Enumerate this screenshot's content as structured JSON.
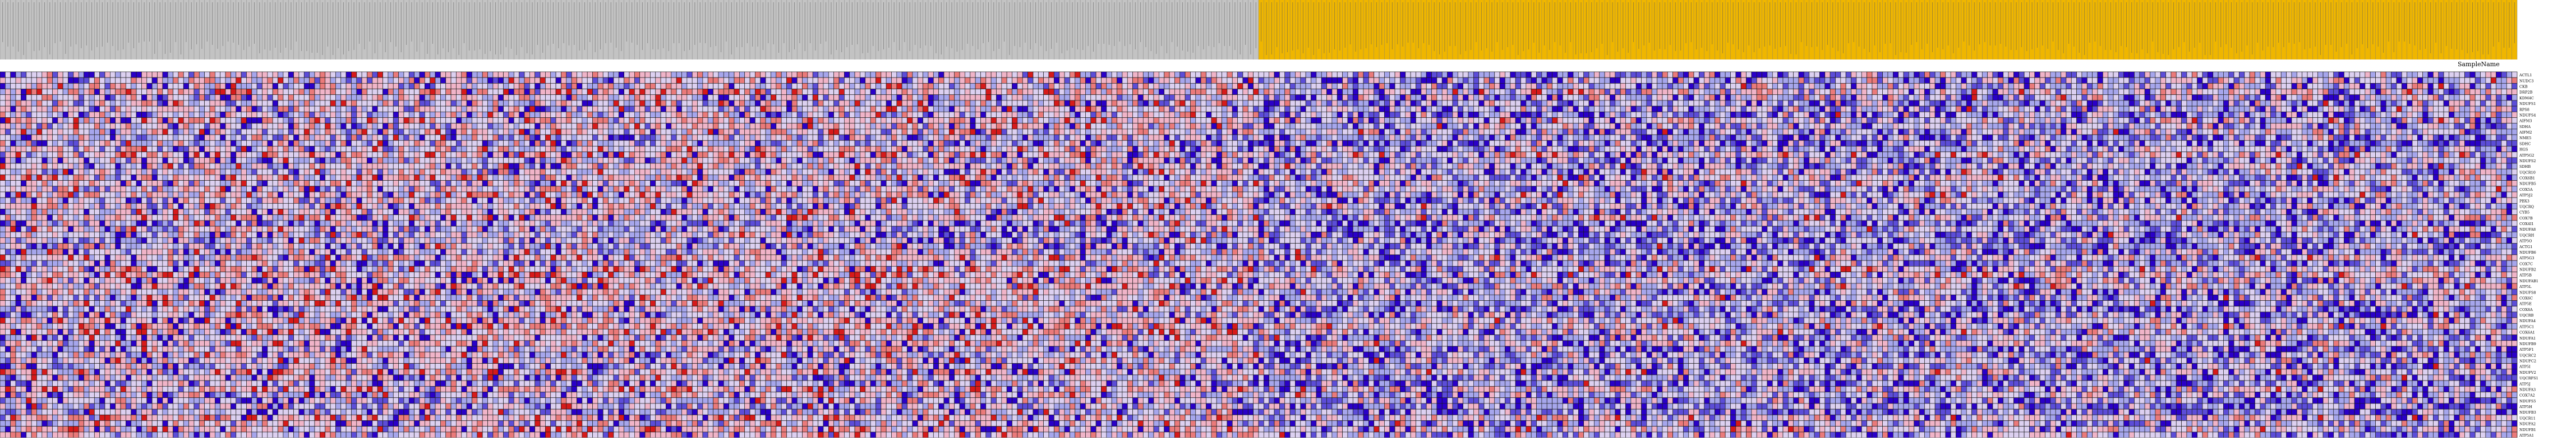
{
  "chart_data": {
    "type": "heatmap",
    "title": "",
    "xlabel": "",
    "ylabel": "",
    "legend": "none",
    "column_class_header": "SampleName",
    "class_colors": {
      "class_1": "#c3c3c3",
      "class_2": "#efb600"
    },
    "value_colors": {
      "strong_low": "#2a00c8",
      "low": "#5c4dd8",
      "mid_low": "#a6a6ec",
      "neutral": "#dcd0f0",
      "mid_high": "#f0b4c8",
      "high": "#ea7a7a",
      "strong_high": "#d61a1a"
    },
    "value_range": [
      -3,
      3
    ],
    "row_labels": [
      "ACTL1",
      "NUDC3",
      "CKB",
      "DRP2B",
      "KDM4C",
      "NDUFS1",
      "RPS8",
      "NDUFS4",
      "AIFM3",
      "SDHA",
      "AIFM2",
      "NME5",
      "SDHC",
      "HGS",
      "ATP5G2",
      "NDUFS2",
      "SDHB",
      "UQCR10",
      "COX6B1",
      "NDUFB5",
      "COX5A",
      "ATP5J2",
      "PBX3",
      "UQCRQ",
      "CYB5",
      "COX7B",
      "COX4I1",
      "NDUFA8",
      "UQCRH",
      "ATP5O",
      "ACTG1",
      "NDUFB6",
      "ATP5G3",
      "COX7C",
      "NDUFB2",
      "ATP5B",
      "NDUFAB1",
      "ATP5L",
      "NDUFS8",
      "COX6C",
      "ATP5E",
      "COX8A",
      "UQCRB",
      "NDUFA4",
      "ATP5C1",
      "COX6A1",
      "NDUFA1",
      "NDUFB9",
      "ATP5F1",
      "UQCRC2",
      "NDUFC2",
      "ATP5I",
      "NDUFV2",
      "UQCRFS1",
      "ATP5J",
      "NDUFA3",
      "COX7A2",
      "NDUFS5",
      "ATP5H",
      "NDUFB3",
      "UQCR11",
      "NDUFA2",
      "NDUFB1",
      "ATP5A1"
    ],
    "column_classes": {
      "class_1": {
        "count": 240,
        "label_prefix": "GSM"
      },
      "class_2": {
        "count": 240,
        "label_prefix": "GSM"
      }
    },
    "seed": 271828
  }
}
